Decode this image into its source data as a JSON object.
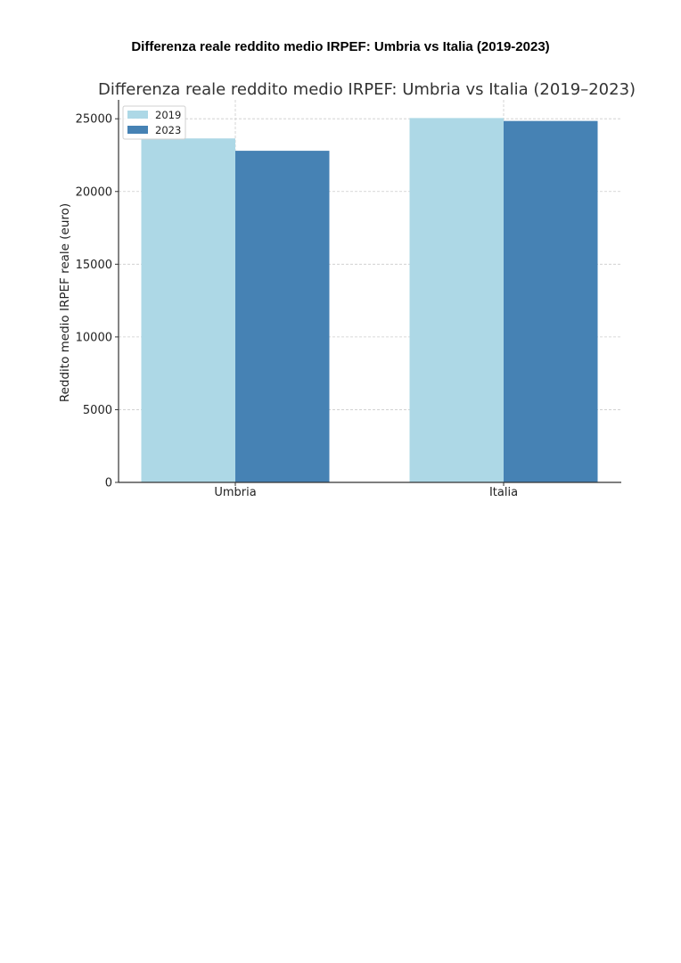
{
  "heading": "Differenza reale reddito medio IRPEF: Umbria vs Italia (2019-2023)",
  "chart_data": {
    "type": "bar",
    "title": "Differenza reale reddito medio IRPEF: Umbria vs Italia (2019–2023)",
    "xlabel": "",
    "ylabel": "Reddito medio IRPEF reale (euro)",
    "categories": [
      "Umbria",
      "Italia"
    ],
    "series": [
      {
        "name": "2019",
        "values": [
          23650,
          25050
        ],
        "color": "#add8e6"
      },
      {
        "name": "2023",
        "values": [
          22800,
          24850
        ],
        "color": "#4682b4"
      }
    ],
    "ylim": [
      0,
      26300
    ],
    "yticks": [
      0,
      5000,
      10000,
      15000,
      20000,
      25000
    ],
    "grid": true,
    "legend_position": "top-left"
  }
}
